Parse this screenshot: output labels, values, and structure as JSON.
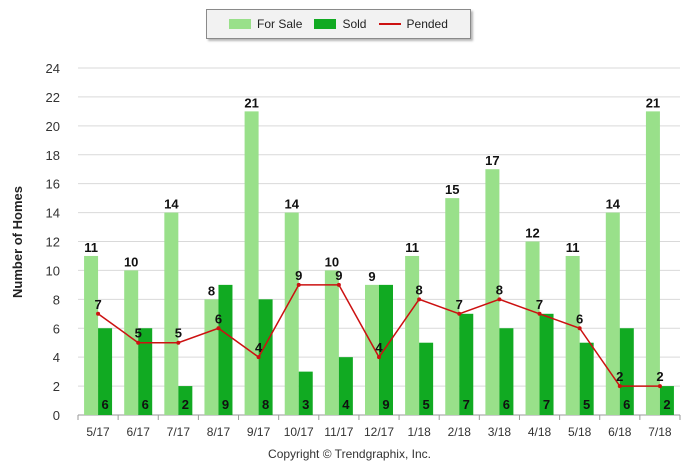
{
  "chart_data": {
    "type": "bar",
    "categories": [
      "5/17",
      "6/17",
      "7/17",
      "8/17",
      "9/17",
      "10/17",
      "11/17",
      "12/17",
      "1/18",
      "2/18",
      "3/18",
      "4/18",
      "5/18",
      "6/18",
      "7/18"
    ],
    "series": [
      {
        "name": "For Sale",
        "type": "bar",
        "color": "#99e08a",
        "values": [
          11,
          10,
          14,
          8,
          21,
          14,
          10,
          9,
          11,
          15,
          17,
          12,
          11,
          14,
          21
        ]
      },
      {
        "name": "Sold",
        "type": "bar",
        "color": "#11aa22",
        "values": [
          6,
          6,
          2,
          9,
          8,
          3,
          4,
          9,
          5,
          7,
          6,
          7,
          5,
          6,
          2
        ]
      },
      {
        "name": "Pended",
        "type": "line",
        "color": "#cc1111",
        "values": [
          7,
          5,
          5,
          6,
          4,
          9,
          9,
          4,
          8,
          7,
          8,
          7,
          6,
          2,
          2
        ]
      }
    ],
    "ylabel": "Number of Homes",
    "xlabel": "",
    "ylim": [
      0,
      24
    ],
    "yticks": [
      0,
      2,
      4,
      6,
      8,
      10,
      12,
      14,
      16,
      18,
      20,
      22,
      24
    ],
    "grid": true,
    "legend_position": "top-center"
  },
  "footer": {
    "copyright": "Copyright © Trendgraphix, Inc."
  }
}
